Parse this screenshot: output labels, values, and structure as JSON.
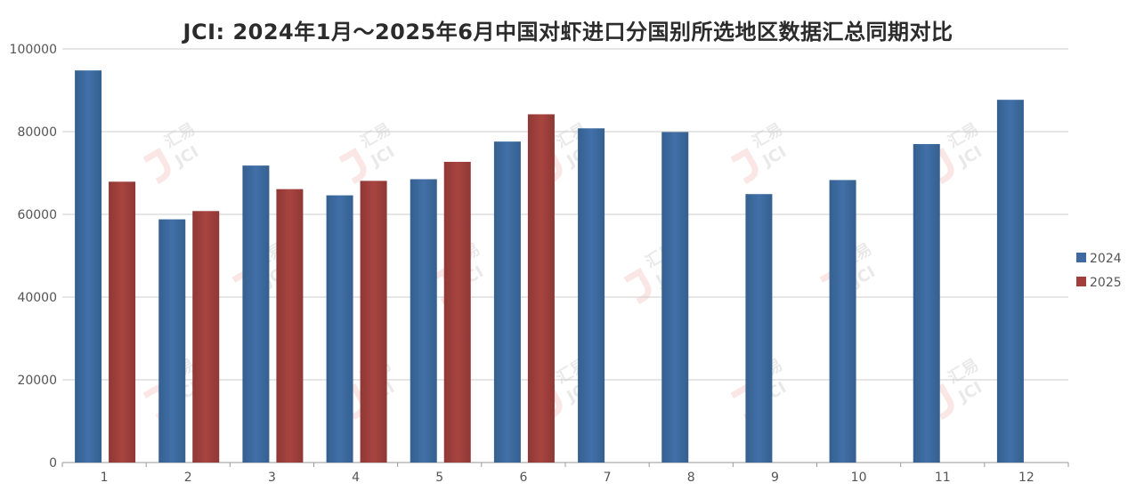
{
  "chart_data": {
    "type": "bar",
    "title": "JCI: 2024年1月～2025年6月中国对虾进口分国别所选地区数据汇总同期对比",
    "xlabel": "",
    "ylabel": "",
    "categories": [
      "1",
      "2",
      "3",
      "4",
      "5",
      "6",
      "7",
      "8",
      "9",
      "10",
      "11",
      "12"
    ],
    "series": [
      {
        "name": "2024",
        "color": "#3e6aa1",
        "values": [
          94800,
          58800,
          71800,
          64600,
          68500,
          77600,
          80800,
          79900,
          64900,
          68300,
          77000,
          87700
        ]
      },
      {
        "name": "2025",
        "color": "#a03f3c",
        "values": [
          67900,
          60800,
          66100,
          68100,
          72700,
          84200,
          null,
          null,
          null,
          null,
          null,
          null
        ]
      }
    ],
    "ylim": [
      0,
      100000
    ],
    "yticks": [
      0,
      20000,
      40000,
      60000,
      80000,
      100000
    ],
    "grid": true,
    "legend_position": "right"
  },
  "watermark": {
    "cn": "汇易",
    "en": "JCI"
  }
}
